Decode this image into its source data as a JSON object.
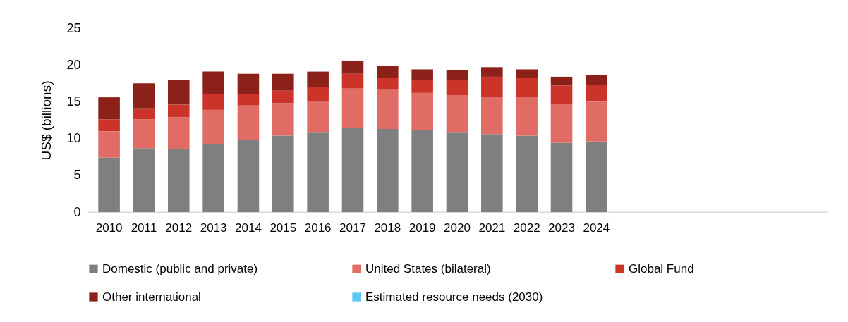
{
  "chart_data": {
    "type": "bar",
    "stacked": true,
    "ylabel": "US$ (billions)",
    "categories": [
      "2010",
      "2011",
      "2012",
      "2013",
      "2014",
      "2015",
      "2016",
      "2017",
      "2018",
      "2019",
      "2020",
      "2021",
      "2022",
      "2023",
      "2024",
      null,
      null,
      null,
      null,
      null,
      null
    ],
    "ylim": [
      0,
      25
    ],
    "yticks": [
      0,
      5,
      10,
      15,
      20,
      25
    ],
    "grid": false,
    "legend": "bottom",
    "series": [
      {
        "name": "Domestic (public and private)",
        "color": "#7f7f7f",
        "values": [
          7.4,
          8.7,
          8.6,
          9.2,
          9.8,
          10.4,
          10.8,
          11.4,
          11.3,
          11.1,
          10.8,
          10.6,
          10.4,
          9.4,
          9.6,
          null,
          null,
          null,
          null,
          null,
          null
        ]
      },
      {
        "name": "United States (bilateral)",
        "color": "#e06c65",
        "values": [
          3.6,
          3.9,
          4.3,
          4.7,
          4.7,
          4.4,
          4.3,
          5.4,
          5.3,
          5.1,
          5.1,
          5.1,
          5.3,
          5.3,
          5.4,
          null,
          null,
          null,
          null,
          null,
          null
        ]
      },
      {
        "name": "Global Fund",
        "color": "#cc3329",
        "values": [
          1.6,
          1.5,
          1.7,
          2.1,
          1.5,
          1.7,
          1.9,
          2.0,
          1.6,
          1.8,
          2.1,
          2.7,
          2.5,
          2.5,
          2.3,
          null,
          null,
          null,
          null,
          null,
          null
        ]
      },
      {
        "name": "Other international",
        "color": "#8b2119",
        "values": [
          3.0,
          3.4,
          3.4,
          3.1,
          2.8,
          2.3,
          2.1,
          1.8,
          1.7,
          1.4,
          1.3,
          1.3,
          1.2,
          1.2,
          1.3,
          null,
          null,
          null,
          null,
          null,
          null
        ]
      },
      {
        "name": "Estimated resource needs (2030)",
        "color": "#5bc8f0",
        "values": [
          null,
          null,
          null,
          null,
          null,
          null,
          null,
          null,
          null,
          null,
          null,
          null,
          null,
          null,
          null,
          null,
          null,
          null,
          null,
          null,
          null
        ]
      }
    ]
  }
}
